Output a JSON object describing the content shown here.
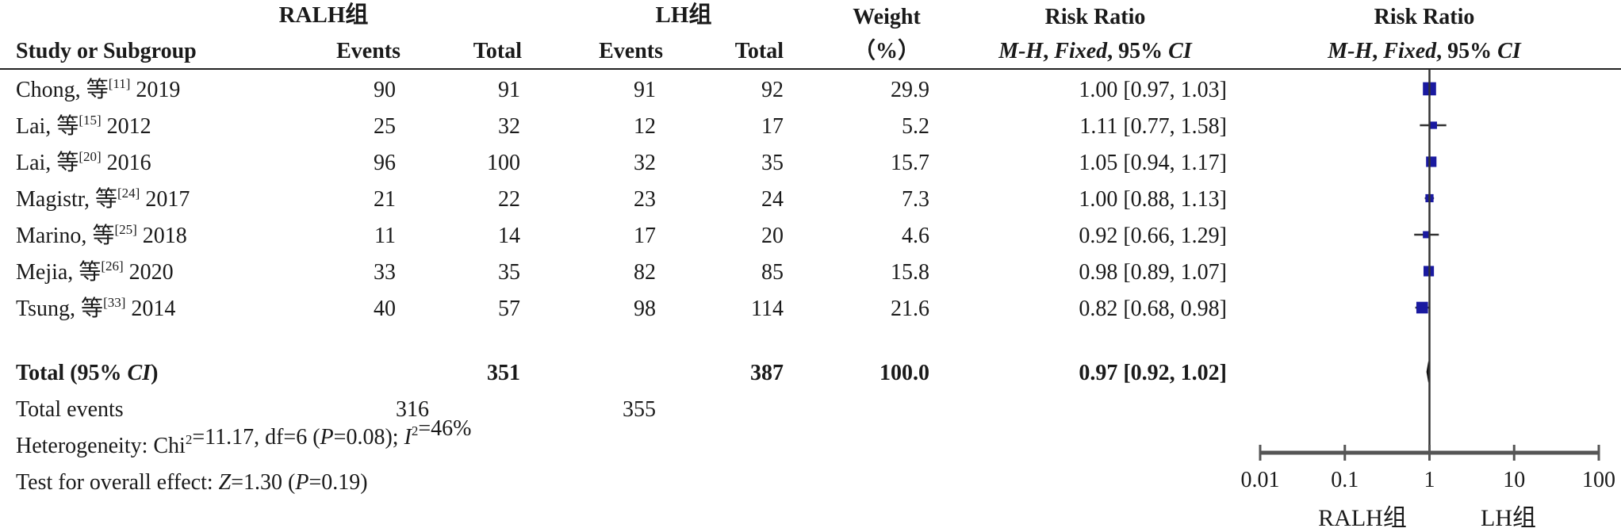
{
  "header": {
    "group1": "RALH组",
    "group2": "LH组",
    "study_col": "Study or Subgroup",
    "events": "Events",
    "total": "Total",
    "weight_line1": "Weight",
    "weight_line2": "（%）",
    "rr_title": "Risk Ratio",
    "rr_method": "M-H, Fixed, 95% CI",
    "plot_title": "Risk Ratio",
    "plot_method": "M-H, Fixed, 95% CI"
  },
  "studies": [
    {
      "author": "Chong, 等",
      "ref": "[11]",
      "year": "2019",
      "e1": "90",
      "t1": "91",
      "e2": "91",
      "t2": "92",
      "weight": "29.9",
      "rr_text": "1.00 [0.97, 1.03]",
      "rr": 1.0,
      "lo": 0.97,
      "hi": 1.03,
      "w": 29.9
    },
    {
      "author": "Lai, 等",
      "ref": "[15]",
      "year": "2012",
      "e1": "25",
      "t1": "32",
      "e2": "12",
      "t2": "17",
      "weight": "5.2",
      "rr_text": "1.11 [0.77, 1.58]",
      "rr": 1.11,
      "lo": 0.77,
      "hi": 1.58,
      "w": 5.2
    },
    {
      "author": "Lai, 等",
      "ref": "[20]",
      "year": "2016",
      "e1": "96",
      "t1": "100",
      "e2": "32",
      "t2": "35",
      "weight": "15.7",
      "rr_text": "1.05 [0.94, 1.17]",
      "rr": 1.05,
      "lo": 0.94,
      "hi": 1.17,
      "w": 15.7
    },
    {
      "author": "Magistr, 等",
      "ref": "[24]",
      "year": "2017",
      "e1": "21",
      "t1": "22",
      "e2": "23",
      "t2": "24",
      "weight": "7.3",
      "rr_text": "1.00 [0.88, 1.13]",
      "rr": 1.0,
      "lo": 0.88,
      "hi": 1.13,
      "w": 7.3
    },
    {
      "author": "Marino, 等",
      "ref": "[25]",
      "year": "2018",
      "e1": "11",
      "t1": "14",
      "e2": "17",
      "t2": "20",
      "weight": "4.6",
      "rr_text": "0.92 [0.66, 1.29]",
      "rr": 0.92,
      "lo": 0.66,
      "hi": 1.29,
      "w": 4.6
    },
    {
      "author": "Mejia, 等",
      "ref": "[26]",
      "year": "2020",
      "e1": "33",
      "t1": "35",
      "e2": "82",
      "t2": "85",
      "weight": "15.8",
      "rr_text": "0.98 [0.89, 1.07]",
      "rr": 0.98,
      "lo": 0.89,
      "hi": 1.07,
      "w": 15.8
    },
    {
      "author": "Tsung, 等",
      "ref": "[33]",
      "year": "2014",
      "e1": "40",
      "t1": "57",
      "e2": "98",
      "t2": "114",
      "weight": "21.6",
      "rr_text": "0.82 [0.68, 0.98]",
      "rr": 0.82,
      "lo": 0.68,
      "hi": 0.98,
      "w": 21.6
    }
  ],
  "total": {
    "label": "Total (95% CI)",
    "t1": "351",
    "t2": "387",
    "weight": "100.0",
    "rr_text": "0.97 [0.92, 1.02]",
    "rr": 0.97,
    "lo": 0.92,
    "hi": 1.02
  },
  "total_events": {
    "label": "Total events",
    "e1": "316",
    "e2": "355"
  },
  "heterogeneity": "Heterogeneity: Chi²=11.17, df=6 (P=0.08); I²=46%",
  "overall_effect": "Test for overall effect: Z=1.30 (P=0.19)",
  "chart_data": {
    "type": "forest",
    "x_scale": "log",
    "xlim": [
      0.01,
      100
    ],
    "x_ticks": [
      "0.01",
      "0.1",
      "1",
      "10",
      "100"
    ],
    "x_left_label": "RALH组",
    "x_right_label": "LH组",
    "reference_line": 1,
    "colors": {
      "marker": "#1a1aa0",
      "ci": "#333333",
      "axis": "#555555",
      "diamond": "#111111"
    }
  }
}
